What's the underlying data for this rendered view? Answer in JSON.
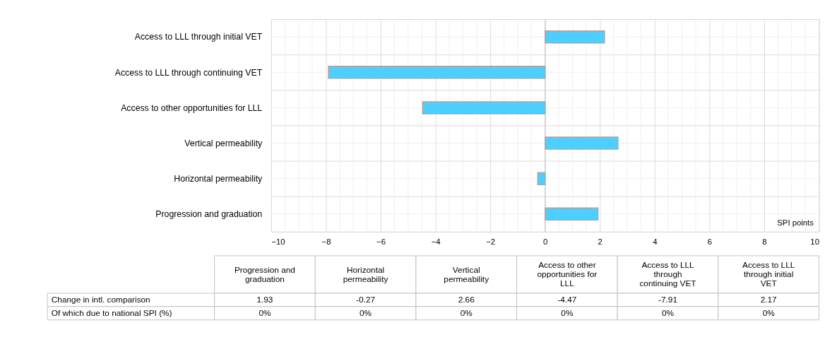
{
  "chart_data": {
    "type": "bar",
    "orientation": "horizontal",
    "xlabel": "SPI points",
    "categories": [
      "Access to LLL through initial VET",
      "Access to LLL through continuing VET",
      "Access to other opportunities for LLL",
      "Vertical permeability",
      "Horizontal permeability",
      "Progression and graduation"
    ],
    "values": [
      2.17,
      -7.91,
      -4.47,
      2.66,
      -0.27,
      1.93
    ],
    "color": "#4dcfff",
    "xlim": [
      -10,
      10
    ],
    "xticks": [
      -10,
      -8,
      -6,
      -4,
      -2,
      0,
      2,
      4,
      6,
      8,
      10
    ],
    "grid": true,
    "annotations": [
      "Change in intl. comparison",
      "Of which due to national SPI (%)",
      "1.93",
      "-0.27",
      "2.66",
      "-4.47",
      "-7.91",
      "2.17",
      "0%",
      "0%",
      "0%",
      "0%",
      "0%",
      "0%"
    ]
  }
}
